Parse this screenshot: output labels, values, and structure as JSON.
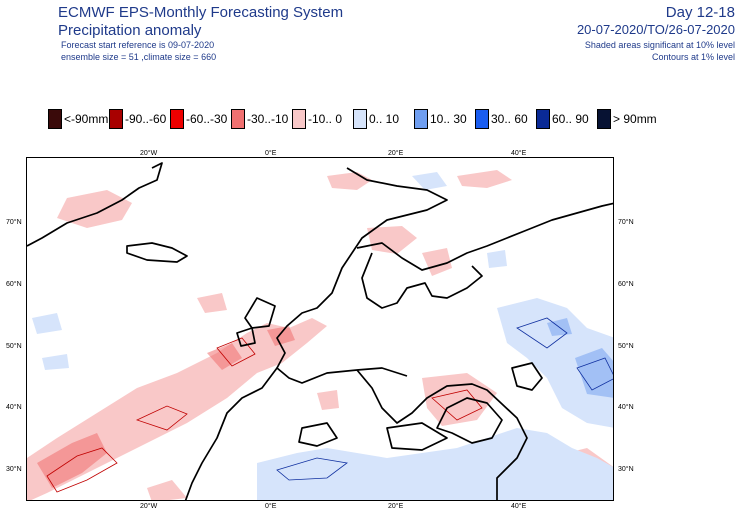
{
  "header": {
    "system": "ECMWF EPS-Monthly Forecasting System",
    "parameter": "Precipitation anomaly",
    "start_ref": "Forecast start reference is 09-07-2020",
    "ensemble": "ensemble size = 51  ,climate size = 660",
    "day_range": "Day 12-18",
    "period": "20-07-2020/TO/26-07-2020",
    "sig_shaded": "Shaded areas significant at 10% level",
    "sig_contours": "Contours at 1% level"
  },
  "legend": [
    {
      "label": "<-90mm",
      "color": "#3a0a0a"
    },
    {
      "label": "-90..-60",
      "color": "#a80000"
    },
    {
      "label": "-60..-30",
      "color": "#ee0000"
    },
    {
      "label": "-30..-10",
      "color": "#f07070"
    },
    {
      "label": "-10..  0",
      "color": "#f9c8c8"
    },
    {
      "label": "0.. 10",
      "color": "#d6e4fb"
    },
    {
      "label": "10.. 30",
      "color": "#6f9ef0"
    },
    {
      "label": "30.. 60",
      "color": "#1a5df0"
    },
    {
      "label": "60.. 90",
      "color": "#0a2a96"
    },
    {
      "label": "> 90mm",
      "color": "#071233"
    }
  ],
  "axes": {
    "lon_top": [
      "20°W",
      "0°E",
      "20°E",
      "40°E"
    ],
    "lon_bottom": [
      "20°W",
      "0°E",
      "20°E",
      "40°E"
    ],
    "lat_left": [
      "70°N",
      "60°N",
      "50°N",
      "40°N",
      "30°N"
    ],
    "lat_right": [
      "70°N",
      "60°N",
      "50°N",
      "40°N",
      "30°N"
    ]
  }
}
